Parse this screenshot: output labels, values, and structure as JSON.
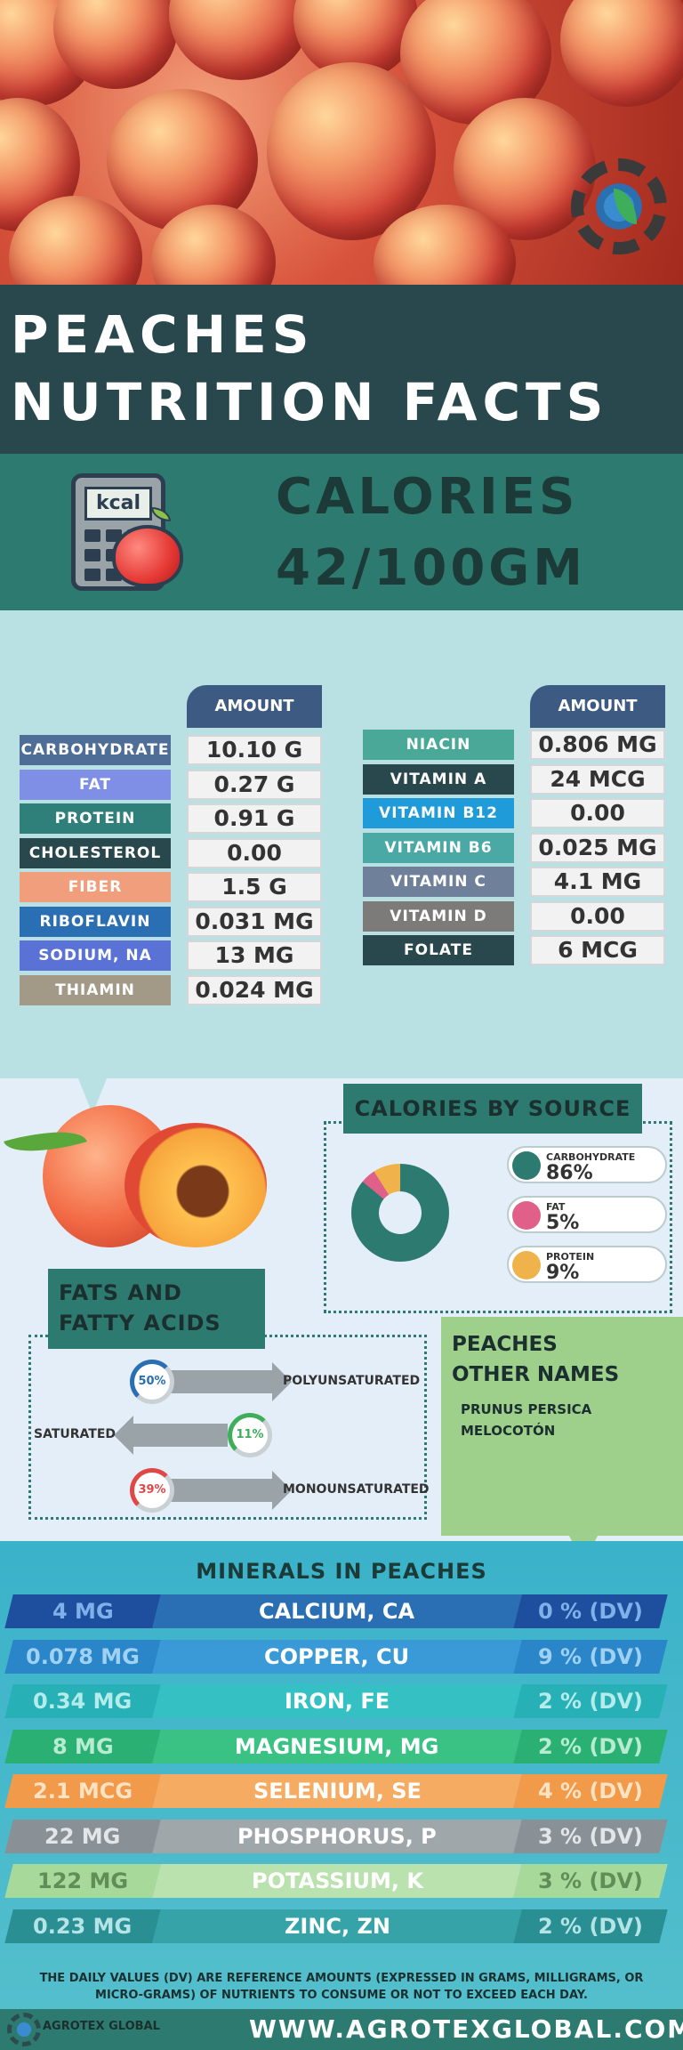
{
  "title": {
    "line1": "PEACHES",
    "line2": "NUTRITION FACTS"
  },
  "calories": {
    "line1": "CALORIES",
    "line2": "42/100GM",
    "icon_text": "kcal"
  },
  "amount_header": "AMOUNT",
  "left_table": [
    {
      "label": "CARBOHYDRATE",
      "value": "10.10 G",
      "color": "#4e6e98"
    },
    {
      "label": "FAT",
      "value": "0.27 G",
      "color": "#7f8fe6"
    },
    {
      "label": "PROTEIN",
      "value": "0.91 G",
      "color": "#2f7f7a"
    },
    {
      "label": "CHOLESTEROL",
      "value": "0.00",
      "color": "#28484d"
    },
    {
      "label": "FIBER",
      "value": "1.5 G",
      "color": "#f19e7d"
    },
    {
      "label": "RIBOFLAVIN",
      "value": "0.031 MG",
      "color": "#2a6fb3"
    },
    {
      "label": "SODIUM, NA",
      "value": "13 MG",
      "color": "#5a72d6"
    },
    {
      "label": "THIAMIN",
      "value": "0.024 MG",
      "color": "#a29a87"
    }
  ],
  "right_table": [
    {
      "label": "NIACIN",
      "value": "0.806 MG",
      "color": "#49a898"
    },
    {
      "label": "VITAMIN A",
      "value": "24 MCG",
      "color": "#28484d"
    },
    {
      "label": "VITAMIN B12",
      "value": "0.00",
      "color": "#1f9bd9"
    },
    {
      "label": "VITAMIN B6",
      "value": "0.025 MG",
      "color": "#4aa9a4"
    },
    {
      "label": "VITAMIN C",
      "value": "4.1 MG",
      "color": "#6e809a"
    },
    {
      "label": "VITAMIN D",
      "value": "0.00",
      "color": "#7d7a7a"
    },
    {
      "label": "FOLATE",
      "value": "6 MCG",
      "color": "#28484d"
    }
  ],
  "calories_by_source": {
    "title": "CALORIES BY SOURCE",
    "items": [
      {
        "name": "CARBOHYDRATE",
        "pct": "86%",
        "color": "#2d7a70"
      },
      {
        "name": "FAT",
        "pct": "5%",
        "color": "#e0608a"
      },
      {
        "name": "PROTEIN",
        "pct": "9%",
        "color": "#f0b24a"
      }
    ]
  },
  "fats": {
    "title_line1": "FATS AND",
    "title_line2": "FATTY ACIDS",
    "items": [
      {
        "name": "POLYUNSATURATED",
        "pct": "50%",
        "color": "#2a6fb3"
      },
      {
        "name": "SATURATED",
        "pct": "11%",
        "color": "#3fae5b"
      },
      {
        "name": "MONOUNSATURATED",
        "pct": "39%",
        "color": "#e04848"
      }
    ]
  },
  "other_names": {
    "title_line1": "PEACHES",
    "title_line2": "OTHER NAMES",
    "names": [
      "PRUNUS PERSICA",
      "MELOCOTÓN"
    ]
  },
  "minerals": {
    "title": "MINERALS IN PEACHES",
    "rows": [
      {
        "amount": "4 MG",
        "name": "CALCIUM, CA",
        "dv": "0 % (DV)",
        "dark": "#1d4f9e",
        "light": "#2a6fb3",
        "text": "#7fb0ea"
      },
      {
        "amount": "0.078 MG",
        "name": "COPPER, CU",
        "dv": "9 % (DV)",
        "dark": "#2a86c8",
        "light": "#3a9ad8",
        "text": "#9fd1f3"
      },
      {
        "amount": "0.34 MG",
        "name": "IRON, FE",
        "dv": "2 % (DV)",
        "dark": "#27b0b5",
        "light": "#35c0c3",
        "text": "#b4ecec"
      },
      {
        "amount": "8 MG",
        "name": "MAGNESIUM, MG",
        "dv": "2 % (DV)",
        "dark": "#2bb073",
        "light": "#39c283",
        "text": "#b8ecd2"
      },
      {
        "amount": "2.1 MCG",
        "name": "SELENIUM, SE",
        "dv": "4 % (DV)",
        "dark": "#f09a4a",
        "light": "#f5ac62",
        "text": "#ffe2c2"
      },
      {
        "amount": "22 MG",
        "name": "PHOSPHORUS, P",
        "dv": "3 % (DV)",
        "dark": "#8a9196",
        "light": "#a0a7ab",
        "text": "#e3e6e8"
      },
      {
        "amount": "122 MG",
        "name": "POTASSIUM, K",
        "dv": "3 % (DV)",
        "dark": "#a6d99a",
        "light": "#b9e2ae",
        "text": "#5f8f57"
      },
      {
        "amount": "0.23 MG",
        "name": "ZINC, ZN",
        "dv": "2 % (DV)",
        "dark": "#2a8f93",
        "light": "#35a3a7",
        "text": "#b4e4e6"
      }
    ]
  },
  "footnote": {
    "line1": "THE DAILY VALUES (DV) ARE REFERENCE AMOUNTS (EXPRESSED IN GRAMS, MILLIGRAMS, OR",
    "line2": "MICRO-GRAMS) OF NUTRIENTS TO CONSUME OR NOT TO EXCEED EACH DAY."
  },
  "footer": {
    "url": "WWW.AGROTEXGLOBAL.COM",
    "logo_text": "AGROTEX GLOBAL"
  }
}
